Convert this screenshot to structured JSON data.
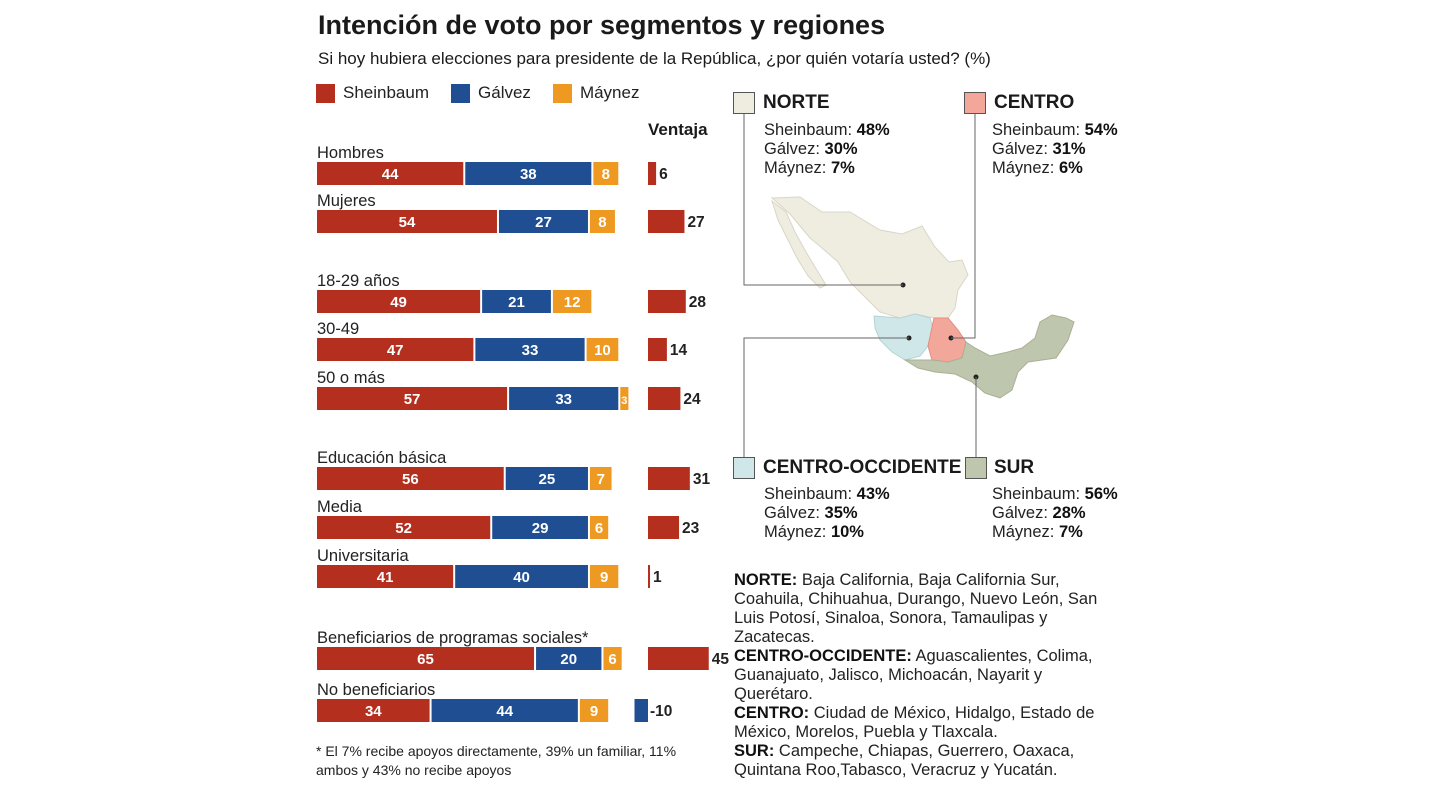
{
  "title": "Intención de voto por segmentos y regiones",
  "subtitle": "Si hoy hubiera elecciones para presidente de la República, ¿por quién votaría usted?  (%)",
  "legend": [
    {
      "name": "Sheinbaum",
      "color": "#b52f1f"
    },
    {
      "name": "Gálvez",
      "color": "#1f4e93"
    },
    {
      "name": "Máynez",
      "color": "#ee9a22"
    }
  ],
  "ventaja_title": "Ventaja",
  "chart_data": {
    "type": "bar",
    "stacked": true,
    "orientation": "horizontal",
    "categories": [
      "Hombres",
      "Mujeres",
      "18-29 años",
      "30-49",
      "50 o más",
      "Educación básica",
      "Media",
      "Universitaria",
      "Beneficiarios de programas sociales*",
      "No beneficiarios"
    ],
    "series": [
      {
        "name": "Sheinbaum",
        "values": [
          44,
          54,
          49,
          47,
          57,
          56,
          52,
          41,
          65,
          34
        ]
      },
      {
        "name": "Gálvez",
        "values": [
          38,
          27,
          21,
          33,
          33,
          25,
          29,
          40,
          20,
          44
        ]
      },
      {
        "name": "Máynez",
        "values": [
          8,
          8,
          12,
          10,
          3,
          7,
          6,
          9,
          6,
          9
        ]
      }
    ],
    "ventaja": [
      6,
      27,
      28,
      14,
      24,
      31,
      23,
      1,
      45,
      -10
    ],
    "ventaja_labels": [
      "6",
      "27",
      "28",
      "14",
      "24",
      "31",
      "23",
      "1",
      "45",
      "-10"
    ]
  },
  "regions": {
    "norte": {
      "name": "NORTE",
      "color": "#efede0",
      "lines": [
        {
          "label": "Sheinbaum: ",
          "value": "48%"
        },
        {
          "label": "Gálvez: ",
          "value": "30%"
        },
        {
          "label": "Máynez: ",
          "value": "7%"
        }
      ]
    },
    "centro": {
      "name": "CENTRO",
      "color": "#f2a79a",
      "lines": [
        {
          "label": "Sheinbaum: ",
          "value": "54%"
        },
        {
          "label": "Gálvez: ",
          "value": "31%"
        },
        {
          "label": "Máynez: ",
          "value": "6%"
        }
      ]
    },
    "centro_occidente": {
      "name": "CENTRO-OCCIDENTE",
      "color": "#cfe7e8",
      "lines": [
        {
          "label": "Sheinbaum: ",
          "value": "43%"
        },
        {
          "label": "Gálvez: ",
          "value": "35%"
        },
        {
          "label": "Máynez: ",
          "value": "10%"
        }
      ]
    },
    "sur": {
      "name": "SUR",
      "color": "#bfc6ae",
      "lines": [
        {
          "label": "Sheinbaum: ",
          "value": "56%"
        },
        {
          "label": "Gálvez: ",
          "value": "28%"
        },
        {
          "label": "Máynez: ",
          "value": "7%"
        }
      ]
    }
  },
  "definitions": [
    {
      "name": "NORTE:",
      "text": " Baja California, Baja California Sur, Coahuila, Chihuahua, Durango, Nuevo León, San Luis Potosí, Sinaloa, Sonora, Tamaulipas y Zacatecas."
    },
    {
      "name": "CENTRO-OCCIDENTE:",
      "text": " Aguascalientes, Colima, Guanajuato, Jalisco, Michoacán, Nayarit y Querétaro."
    },
    {
      "name": "CENTRO:",
      "text": " Ciudad de México, Hidalgo, Estado de México, Morelos, Puebla y Tlaxcala."
    },
    {
      "name": "SUR:",
      "text": " Campeche, Chiapas, Guerrero, Oaxaca, Quintana Roo,Tabasco, Veracruz y Yucatán."
    }
  ],
  "footnote": "* El 7% recibe apoyos directamente, 39% un familiar, 11% ambos y 43% no recibe apoyos"
}
